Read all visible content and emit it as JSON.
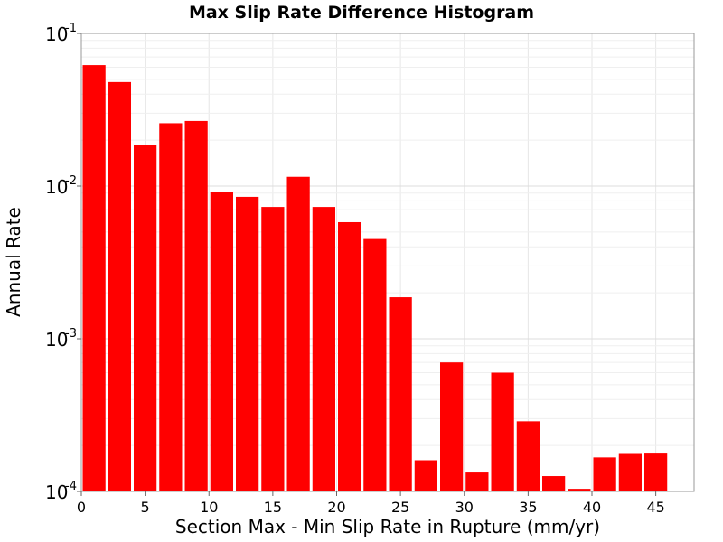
{
  "chart_data": {
    "type": "bar",
    "title": "Max Slip Rate Difference Histogram",
    "xlabel": "Section Max - Min Slip Rate in Rupture (mm/yr)",
    "ylabel": "Annual Rate",
    "yscale": "log",
    "xlim": [
      0,
      48
    ],
    "ylim": [
      0.0001,
      0.1
    ],
    "bin_width": 2,
    "bar_color": "#ff0000",
    "grid": true,
    "x_ticks": [
      "0",
      "5",
      "10",
      "15",
      "20",
      "25",
      "30",
      "35",
      "40",
      "45"
    ],
    "y_ticks": [
      {
        "base": "10",
        "exp": "-4"
      },
      {
        "base": "10",
        "exp": "-3"
      },
      {
        "base": "10",
        "exp": "-2"
      },
      {
        "base": "10",
        "exp": "-1"
      }
    ],
    "x": [
      1,
      3,
      5,
      7,
      9,
      11,
      13,
      15,
      17,
      19,
      21,
      23,
      25,
      27,
      29,
      31,
      33,
      35,
      37,
      39,
      41,
      43,
      45
    ],
    "values": [
      0.062,
      0.048,
      0.0185,
      0.0258,
      0.0267,
      0.0091,
      0.0085,
      0.0073,
      0.0115,
      0.0073,
      0.0058,
      0.0045,
      0.00187,
      0.00016,
      0.0007,
      0.000133,
      0.0006,
      0.000288,
      0.000126,
      0.000104,
      0.000167,
      0.000176,
      0.000177
    ]
  }
}
